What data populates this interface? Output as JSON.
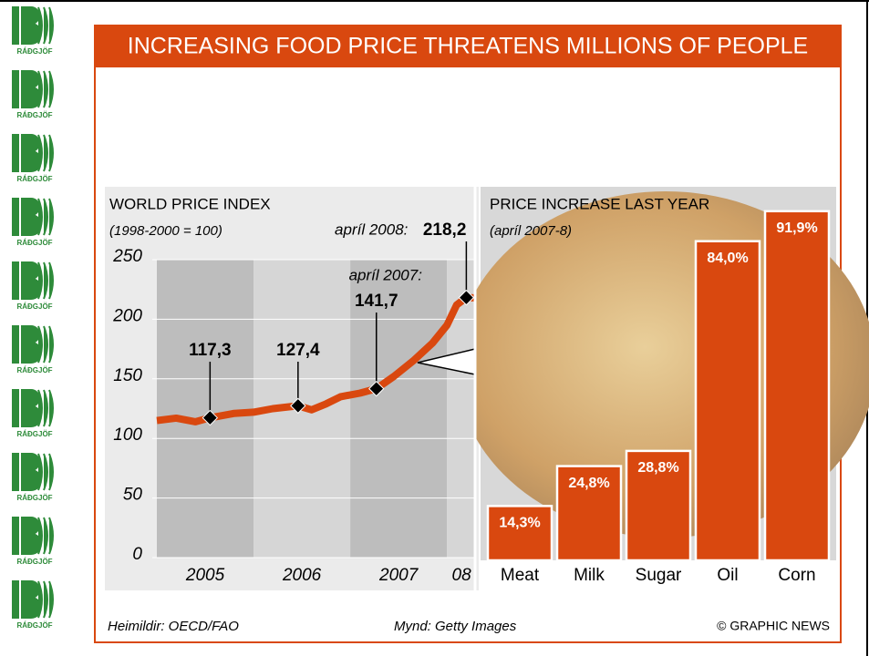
{
  "logo_text": "RÁÐGJÖF",
  "title": "INCREASING FOOD PRICE THREATENS MILLIONS OF PEOPLE",
  "footer": {
    "source": "Heimildir: OECD/FAO",
    "photo": "Mynd: Getty Images",
    "credit": "© GRAPHIC NEWS"
  },
  "chart_data": [
    {
      "type": "line",
      "title": "WORLD PRICE INDEX",
      "subtitle": "(1998-2000 = 100)",
      "x": [
        2005.0,
        2005.2,
        2005.4,
        2005.55,
        2005.8,
        2006.0,
        2006.2,
        2006.46,
        2006.6,
        2006.75,
        2006.9,
        2007.1,
        2007.27,
        2007.45,
        2007.65,
        2007.85,
        2008.0,
        2008.1,
        2008.2,
        2008.28
      ],
      "values": [
        115,
        117,
        114,
        117.3,
        121,
        122,
        125,
        127.4,
        124,
        129,
        135,
        138,
        141.7,
        152,
        165,
        180,
        195,
        212,
        218.2,
        218
      ],
      "color": "#d9480f",
      "xlim": [
        2005,
        2008.3
      ],
      "ylim": [
        0,
        250
      ],
      "yticks": [
        0,
        50,
        100,
        150,
        200,
        250
      ],
      "bands": [
        {
          "start": 2005,
          "label": "2005"
        },
        {
          "start": 2006,
          "label": "2006"
        },
        {
          "start": 2007,
          "label": "2007"
        },
        {
          "start": 2008,
          "label": "08"
        }
      ],
      "annotations": [
        {
          "x": 2005.55,
          "value": 117.3,
          "label": "117,3"
        },
        {
          "x": 2006.46,
          "value": 127.4,
          "label": "127,4"
        },
        {
          "x": 2007.27,
          "value": 141.7,
          "prefix": "apríl 2007:",
          "label": "141,7"
        },
        {
          "x": 2008.2,
          "value": 218.2,
          "prefix": "apríl 2008:",
          "label": "218,2"
        }
      ]
    },
    {
      "type": "bar",
      "title": "PRICE INCREASE LAST YEAR",
      "subtitle": "(apríl 2007-8)",
      "categories": [
        "Meat",
        "Milk",
        "Sugar",
        "Oil",
        "Corn"
      ],
      "values": [
        14.3,
        24.8,
        28.8,
        84.0,
        91.9
      ],
      "value_labels": [
        "14,3%",
        "24,8%",
        "28,8%",
        "84,0%",
        "91,9%"
      ],
      "color": "#d9480f",
      "ylim": [
        0,
        100
      ]
    }
  ]
}
